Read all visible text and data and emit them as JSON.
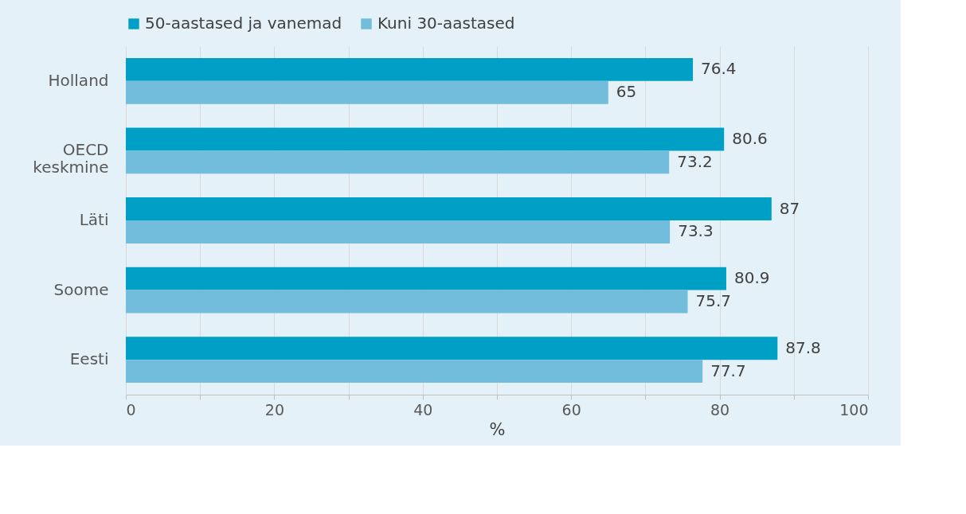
{
  "chart_data": {
    "type": "bar",
    "orientation": "horizontal",
    "xlabel": "%",
    "categories": [
      "Holland",
      "OECD keskmine",
      "Läti",
      "Soome",
      "Eesti"
    ],
    "series": [
      {
        "name": "50-aastased ja vanemad",
        "color": "#00a0c6",
        "values": [
          76.4,
          80.6,
          87,
          80.9,
          87.8
        ]
      },
      {
        "name": "Kuni 30-aastased",
        "color": "#72bcdc",
        "values": [
          65,
          73.2,
          73.3,
          75.7,
          77.7
        ]
      }
    ],
    "xlim": [
      0,
      100
    ],
    "xticks": [
      0,
      {
        "value": 10,
        "label": null
      },
      20,
      {
        "value": 30,
        "label": null
      },
      40,
      {
        "value": 50,
        "label": null
      },
      60,
      {
        "value": 70,
        "label": null
      },
      80,
      {
        "value": 90,
        "label": null
      },
      100
    ],
    "grid": "x",
    "legend": "top",
    "data_labels": true
  }
}
